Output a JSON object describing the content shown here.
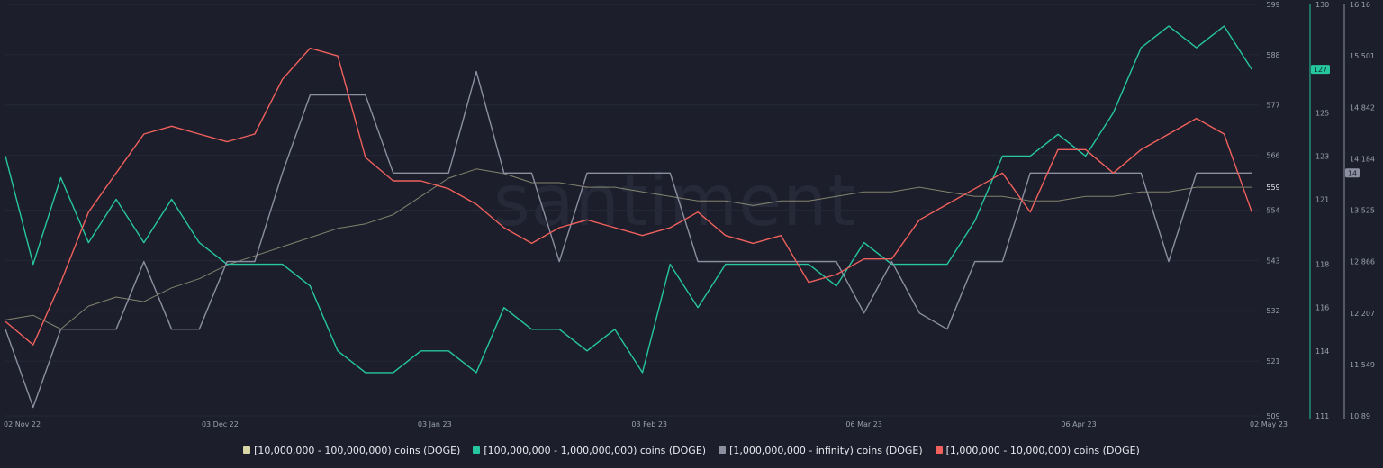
{
  "watermark": "santiment",
  "chart_data": {
    "type": "line",
    "x": [
      "2022-11-02",
      "2022-11-06",
      "2022-11-10",
      "2022-11-14",
      "2022-11-18",
      "2022-11-22",
      "2022-11-26",
      "2022-11-30",
      "2022-12-04",
      "2022-12-08",
      "2022-12-12",
      "2022-12-16",
      "2022-12-20",
      "2022-12-24",
      "2022-12-28",
      "2023-01-01",
      "2023-01-05",
      "2023-01-09",
      "2023-01-13",
      "2023-01-17",
      "2023-01-21",
      "2023-01-25",
      "2023-01-29",
      "2023-02-02",
      "2023-02-06",
      "2023-02-10",
      "2023-02-14",
      "2023-02-18",
      "2023-02-22",
      "2023-02-26",
      "2023-03-02",
      "2023-03-06",
      "2023-03-10",
      "2023-03-14",
      "2023-03-18",
      "2023-03-22",
      "2023-03-26",
      "2023-03-30",
      "2023-04-03",
      "2023-04-07",
      "2023-04-11",
      "2023-04-15",
      "2023-04-19",
      "2023-04-23",
      "2023-04-27",
      "2023-05-01"
    ],
    "x_ticks": [
      "02 Nov 22",
      "03 Dec 22",
      "03 Jan 23",
      "03 Feb 23",
      "06 Mar 23",
      "06 Apr 23",
      "02 May 23"
    ],
    "x_tick_dates": [
      "2022-11-02",
      "2022-12-03",
      "2023-01-03",
      "2023-02-03",
      "2023-03-06",
      "2023-04-06",
      "2023-05-02"
    ],
    "x_range": [
      "2022-11-02",
      "2023-05-02"
    ],
    "axes": [
      {
        "id": "ax1",
        "range": [
          509,
          599
        ],
        "ticks": [
          "599",
          "588",
          "577",
          "566",
          "554",
          "543",
          "532",
          "521",
          "509"
        ],
        "color": "#9aa0ae"
      },
      {
        "id": "ax2",
        "range": [
          111,
          130
        ],
        "ticks": [
          "130",
          "127",
          "125",
          "123",
          "121",
          "118",
          "116",
          "114",
          "111"
        ],
        "color": "#26c6a0"
      },
      {
        "id": "ax3",
        "range": [
          10.89,
          16.16
        ],
        "ticks": [
          "16.16",
          "15.501",
          "14.842",
          "14.184",
          "13.525",
          "12.866",
          "12.207",
          "11.549",
          "10.89"
        ],
        "color": "#8b8fa0"
      }
    ],
    "badges": [
      {
        "text": "559",
        "axis": "ax1",
        "value": 559,
        "fill": "#1c1f2b",
        "text_color": "#e6e8ee"
      },
      {
        "text": "127",
        "axis": "ax2",
        "value": 127,
        "fill": "#26c6a0",
        "text_color": "#0c2a22"
      },
      {
        "text": "14",
        "axis": "ax3",
        "value": 14,
        "fill": "#8b8fa0",
        "text_color": "#1c1f2b"
      }
    ],
    "series": [
      {
        "name": "[10,000,000 - 100,000,000) coins (DOGE)",
        "axis": "ax1",
        "color": "#d9d6a6",
        "values": [
          530,
          531,
          528,
          533,
          535,
          534,
          537,
          539,
          542,
          544,
          546,
          548,
          550,
          551,
          553,
          557,
          561,
          563,
          562,
          560,
          560,
          559,
          559,
          558,
          557,
          556,
          556,
          555,
          556,
          556,
          557,
          558,
          558,
          559,
          558,
          557,
          557,
          556,
          556,
          557,
          557,
          558,
          558,
          559,
          559,
          559
        ]
      },
      {
        "name": "[100,000,000 - 1,000,000,000) coins (DOGE)",
        "axis": "ax2",
        "color": "#26c6a0",
        "values": [
          123,
          118,
          122,
          119,
          121,
          119,
          121,
          119,
          118,
          118,
          118,
          117,
          114,
          113,
          113,
          114,
          114,
          113,
          116,
          115,
          115,
          114,
          115,
          113,
          118,
          116,
          118,
          118,
          118,
          118,
          117,
          119,
          118,
          118,
          118,
          120,
          123,
          123,
          124,
          123,
          125,
          128,
          129,
          128,
          129,
          127
        ]
      },
      {
        "name": "[1,000,000,000 - infinity) coins (DOGE)",
        "axis": "ax3",
        "color": "#8b8fa0",
        "values": [
          12.0,
          11.0,
          12.0,
          12.0,
          12.0,
          12.866,
          12.0,
          12.0,
          12.866,
          12.866,
          14.0,
          15.0,
          15.0,
          15.0,
          14.0,
          14.0,
          14.0,
          15.3,
          14.0,
          14.0,
          12.866,
          14.0,
          14.0,
          14.0,
          14.0,
          12.866,
          12.866,
          12.866,
          12.866,
          12.866,
          12.866,
          12.207,
          12.866,
          12.207,
          12.0,
          12.866,
          12.866,
          14.0,
          14.0,
          14.0,
          14.0,
          14.0,
          12.866,
          14.0,
          14.0,
          14.0
        ]
      },
      {
        "name": "[1,000,000 - 10,000,000) coins (DOGE)",
        "axis": "ax3",
        "color": "#f0605d",
        "values": [
          12.1,
          11.8,
          12.6,
          13.5,
          14.0,
          14.5,
          14.6,
          14.5,
          14.4,
          14.5,
          15.2,
          15.6,
          15.5,
          14.2,
          13.9,
          13.9,
          13.8,
          13.6,
          13.3,
          13.1,
          13.3,
          13.4,
          13.3,
          13.2,
          13.3,
          13.5,
          13.2,
          13.1,
          13.2,
          12.6,
          12.7,
          12.9,
          12.9,
          13.4,
          13.6,
          13.8,
          14.0,
          13.5,
          14.3,
          14.3,
          14.0,
          14.3,
          14.5,
          14.7,
          14.5,
          13.5
        ]
      }
    ]
  }
}
